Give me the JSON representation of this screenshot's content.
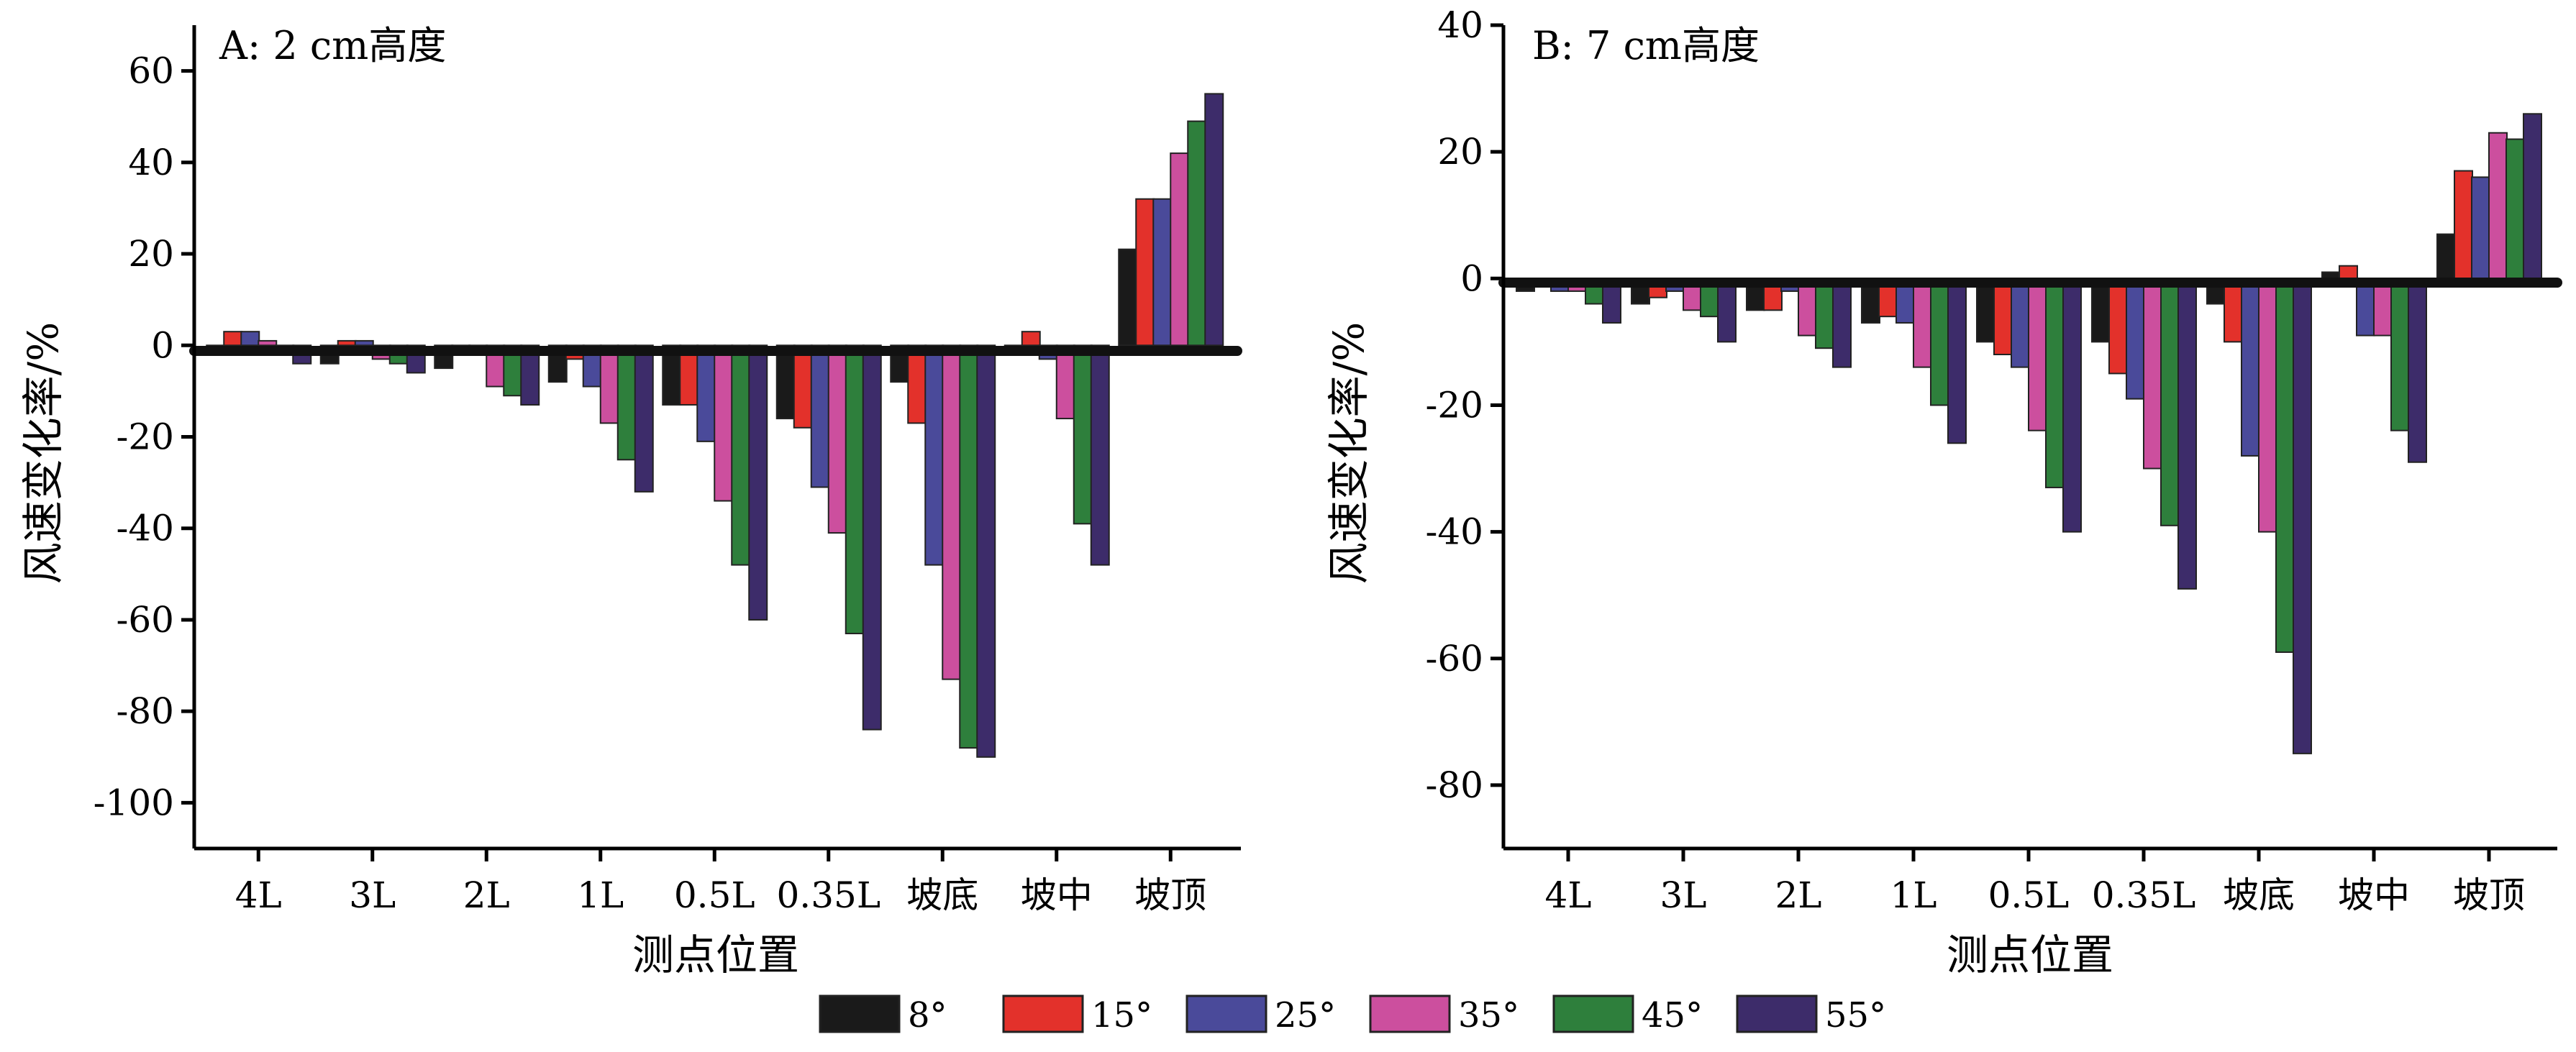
{
  "chart_data": [
    {
      "type": "bar",
      "title": "A: 2 cm高度",
      "xlabel": "测点位置",
      "ylabel": "风速变化率/%",
      "ylim": [
        -110,
        70
      ],
      "yticks": [
        60,
        40,
        20,
        0,
        -20,
        -40,
        -60,
        -80,
        -100
      ],
      "categories": [
        "4L",
        "3L",
        "2L",
        "1L",
        "0.5L",
        "0.35L",
        "坡底",
        "坡中",
        "坡顶"
      ],
      "series": [
        {
          "name": "8°",
          "values": [
            -1,
            -4,
            -5,
            -8,
            -13,
            -16,
            -8,
            0,
            21
          ]
        },
        {
          "name": "15°",
          "values": [
            3,
            1,
            -2,
            -3,
            -13,
            -18,
            -17,
            3,
            32
          ]
        },
        {
          "name": "25°",
          "values": [
            3,
            1,
            -2,
            -9,
            -21,
            -31,
            -48,
            -3,
            32
          ]
        },
        {
          "name": "35°",
          "values": [
            1,
            -3,
            -9,
            -17,
            -34,
            -41,
            -73,
            -16,
            42
          ]
        },
        {
          "name": "45°",
          "values": [
            -2,
            -4,
            -11,
            -25,
            -48,
            -63,
            -88,
            -39,
            49
          ]
        },
        {
          "name": "55°",
          "values": [
            -4,
            -6,
            -13,
            -32,
            -60,
            -84,
            -90,
            -48,
            55
          ]
        }
      ]
    },
    {
      "type": "bar",
      "title": "B: 7 cm高度",
      "xlabel": "测点位置",
      "ylabel": "风速变化率/%",
      "ylim": [
        -90,
        40
      ],
      "yticks": [
        40,
        20,
        0,
        -20,
        -40,
        -60,
        -80
      ],
      "categories": [
        "4L",
        "3L",
        "2L",
        "1L",
        "0.5L",
        "0.35L",
        "坡底",
        "坡中",
        "坡顶"
      ],
      "series": [
        {
          "name": "8°",
          "values": [
            -2,
            -4,
            -5,
            -7,
            -10,
            -10,
            -4,
            1,
            7
          ]
        },
        {
          "name": "15°",
          "values": [
            -1,
            -3,
            -5,
            -6,
            -12,
            -15,
            -10,
            2,
            17
          ]
        },
        {
          "name": "25°",
          "values": [
            -2,
            -2,
            -2,
            -7,
            -14,
            -19,
            -28,
            -9,
            16
          ]
        },
        {
          "name": "35°",
          "values": [
            -2,
            -5,
            -9,
            -14,
            -24,
            -30,
            -40,
            -9,
            23
          ]
        },
        {
          "name": "45°",
          "values": [
            -4,
            -6,
            -11,
            -20,
            -33,
            -39,
            -59,
            -24,
            22
          ]
        },
        {
          "name": "55°",
          "values": [
            -7,
            -10,
            -14,
            -26,
            -40,
            -49,
            -75,
            -29,
            26
          ]
        }
      ]
    }
  ],
  "legend": {
    "position": "bottom",
    "items": [
      {
        "label": "8°",
        "color": "#1a1a1a"
      },
      {
        "label": "15°",
        "color": "#e3312b"
      },
      {
        "label": "25°",
        "color": "#4a4a9a"
      },
      {
        "label": "35°",
        "color": "#cc4f9e"
      },
      {
        "label": "45°",
        "color": "#2e7f3c"
      },
      {
        "label": "55°",
        "color": "#3d2c6a"
      }
    ]
  }
}
